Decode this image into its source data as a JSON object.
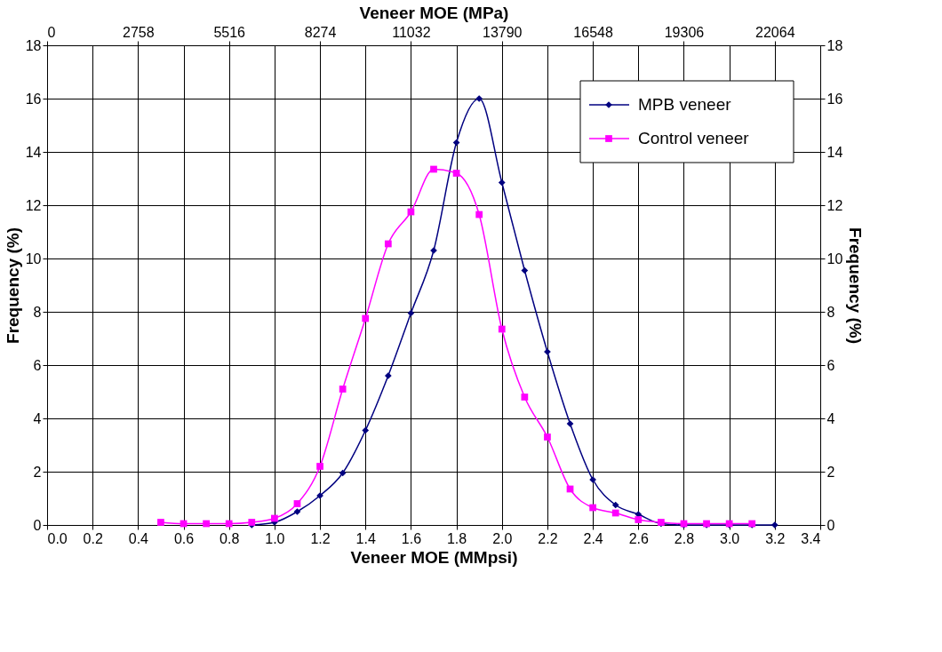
{
  "chart_data": {
    "type": "line",
    "xlabel": "Veneer MOE (MMpsi)",
    "x2label": "Veneer MOE (MPa)",
    "ylabel": "Frequency (%)",
    "y2label": "Frequency (%)",
    "xlim": [
      0,
      3.4
    ],
    "xticks": [
      {
        "value": 0,
        "label": "0.0"
      },
      0.2,
      0.4,
      0.6,
      0.8,
      {
        "value": 1,
        "label": "1.0"
      },
      1.2,
      1.4,
      1.6,
      1.8,
      {
        "value": 2,
        "label": "2.0"
      },
      2.2,
      2.4,
      2.6,
      2.8,
      {
        "value": 3,
        "label": "3.0"
      },
      3.2,
      3.4
    ],
    "x2lim": [
      0,
      23443
    ],
    "x2ticks": [
      0,
      2758,
      5516,
      8274,
      11032,
      13790,
      16548,
      19306,
      22064
    ],
    "ylim": [
      0,
      18
    ],
    "yticks": [
      0,
      2,
      4,
      6,
      8,
      10,
      12,
      14,
      16,
      18
    ],
    "y2lim": [
      0,
      18
    ],
    "y2ticks": [
      0,
      2,
      4,
      6,
      8,
      10,
      12,
      14,
      16,
      18
    ],
    "grid": true,
    "legend": "top right",
    "line_style": "solid",
    "series": [
      {
        "name": "MPB veneer",
        "color": "#000080",
        "marker": "diamond",
        "x": [
          0.9,
          1.0,
          1.1,
          1.2,
          1.3,
          1.4,
          1.5,
          1.6,
          1.7,
          1.8,
          1.9,
          2.0,
          2.1,
          2.2,
          2.3,
          2.4,
          2.5,
          2.6,
          2.7,
          2.8,
          2.9,
          3.0,
          3.1,
          3.2
        ],
        "values": [
          0,
          0.1,
          0.5,
          1.1,
          1.95,
          3.55,
          5.6,
          7.95,
          10.3,
          14.35,
          16.0,
          12.85,
          9.55,
          6.5,
          3.8,
          1.7,
          0.75,
          0.4,
          0.05,
          0,
          0,
          0,
          0,
          0
        ]
      },
      {
        "name": "Control veneer",
        "color": "#ff00ff",
        "marker": "square",
        "x": [
          0.5,
          0.6,
          0.7,
          0.8,
          0.9,
          1.0,
          1.1,
          1.2,
          1.3,
          1.4,
          1.5,
          1.6,
          1.7,
          1.8,
          1.9,
          2.0,
          2.1,
          2.2,
          2.3,
          2.4,
          2.5,
          2.6,
          2.7,
          2.8,
          2.9,
          3.0,
          3.1
        ],
        "values": [
          0.1,
          0.05,
          0.05,
          0.05,
          0.1,
          0.25,
          0.8,
          2.2,
          5.1,
          7.75,
          10.55,
          11.75,
          13.35,
          13.2,
          11.65,
          7.35,
          4.8,
          3.3,
          1.35,
          0.65,
          0.45,
          0.2,
          0.1,
          0.05,
          0.05,
          0.05,
          0.05
        ]
      }
    ]
  }
}
